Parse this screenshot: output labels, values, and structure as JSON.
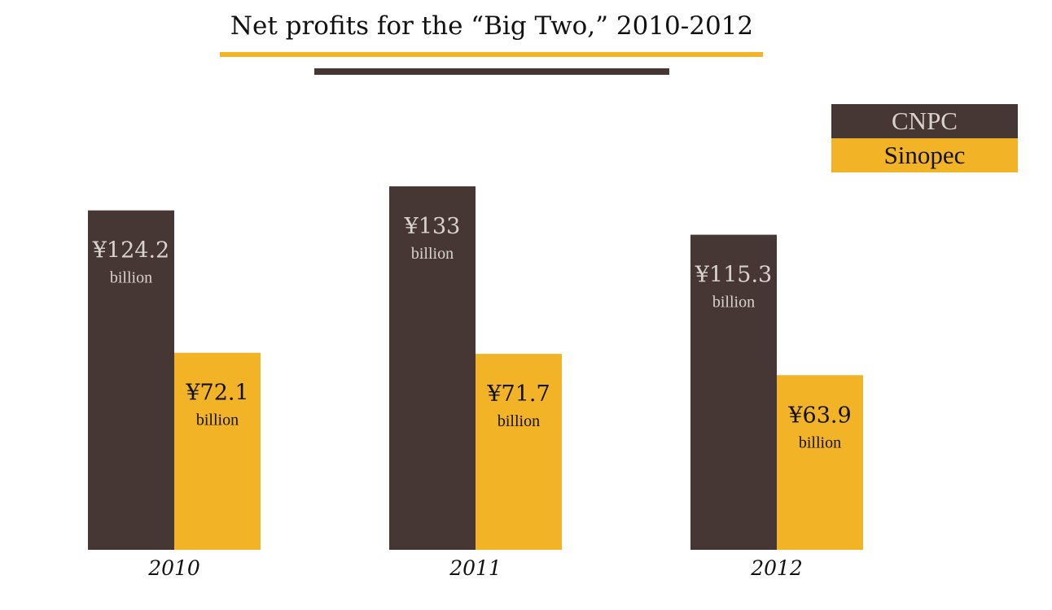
{
  "title": "Net profits for the “Big Two,” 2010-2012",
  "colors": {
    "cnpc": "#463634",
    "sinopec": "#f2b426",
    "cnpc_label": "#d9d3d0",
    "sinopec_label": "#111111"
  },
  "legend": {
    "cnpc": "CNPC",
    "sinopec": "Sinopec"
  },
  "chart_data": {
    "type": "bar",
    "title": "Net profits for the “Big Two,” 2010-2012",
    "categories": [
      "2010",
      "2011",
      "2012"
    ],
    "series": [
      {
        "name": "CNPC",
        "values": [
          124.2,
          133,
          115.3
        ],
        "labels": [
          "¥124.2",
          "¥133",
          "¥115.3"
        ],
        "unit_label": "billion"
      },
      {
        "name": "Sinopec",
        "values": [
          72.1,
          71.7,
          63.9
        ],
        "labels": [
          "¥72.1",
          "¥71.7",
          "¥63.9"
        ],
        "unit_label": "billion"
      }
    ],
    "xlabel": "",
    "ylabel": "",
    "ylim": [
      0,
      133
    ],
    "grid": false,
    "legend_position": "top-right"
  }
}
